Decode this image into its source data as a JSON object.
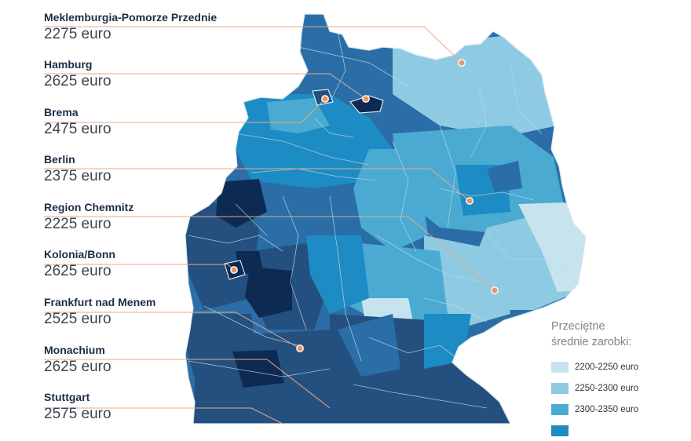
{
  "regions": [
    {
      "name": "Meklemburgia-Pomorze Przednie",
      "value": "2275 euro"
    },
    {
      "name": "Hamburg",
      "value": "2625 euro"
    },
    {
      "name": "Brema",
      "value": "2475 euro"
    },
    {
      "name": "Berlin",
      "value": "2375 euro"
    },
    {
      "name": "Region Chemnitz",
      "value": "2225 euro"
    },
    {
      "name": "Kolonia/Bonn",
      "value": "2625 euro"
    },
    {
      "name": "Frankfurt nad Menem",
      "value": "2525 euro"
    },
    {
      "name": "Monachium",
      "value": "2625 euro"
    },
    {
      "name": "Stuttgart",
      "value": "2575 euro"
    }
  ],
  "legend": {
    "title_line1": "Przeciętne",
    "title_line2": "średnie zarobki:",
    "items": [
      {
        "label": "2200-2250 euro",
        "color": "#c6e4ee"
      },
      {
        "label": "2250-2300 euro",
        "color": "#8ecbe2"
      },
      {
        "label": "2300-2350 euro",
        "color": "#4aaad2"
      },
      {
        "label": "",
        "color": "#1e8cc4"
      }
    ]
  },
  "colors": {
    "accent_marker": "#e8946a",
    "leader_line": "#e8a88a",
    "darkest": "#0d2b52",
    "dark": "#24507f",
    "mid_dark": "#2b6da6",
    "mid": "#1e8cc4",
    "light": "#4aaad2",
    "lighter": "#8ecbe2",
    "lightest": "#c6e4ee",
    "text_dark": "#1e2d45"
  }
}
